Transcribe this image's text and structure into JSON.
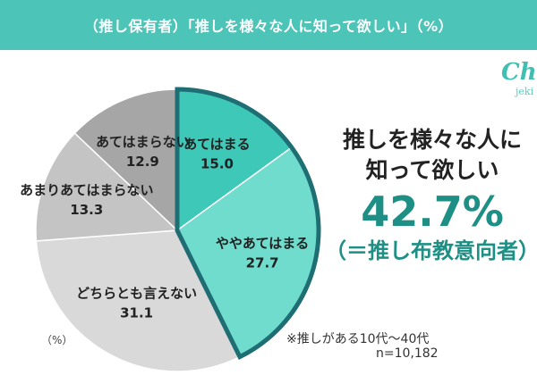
{
  "title": "（推し保有者）「推しを様々な人に知って欲しい」（%）",
  "logo": {
    "main": "Che",
    "sub": "jeki"
  },
  "callout": {
    "line1": "推しを様々な人に",
    "line2": "知って欲しい",
    "percent": "42.7%",
    "sub": "（＝推し布教意向者）"
  },
  "unit_label": "（%）",
  "note": {
    "line1": "※推しがある10代～40代",
    "line2": "n=10,182"
  },
  "colors": {
    "header": "#4cc4b8",
    "accent": "#1d8f84",
    "highlight_border": "#1e6e74"
  },
  "chart_data": {
    "type": "pie",
    "title": "（推し保有者）「推しを様々な人に知って欲しい」（%）",
    "categories": [
      "あてはまる",
      "ややあてはまる",
      "どちらとも言えない",
      "あまりあてはまらない",
      "あてはまらない"
    ],
    "values": [
      15.0,
      27.7,
      31.1,
      13.3,
      12.9
    ],
    "labels": [
      "15.0%",
      "27.7%",
      "31.1%",
      "13.3%",
      "12.9%"
    ],
    "colors": [
      "#3ec8b8",
      "#6fdccd",
      "#d9d9d9",
      "#c4c4c4",
      "#a6a6a6"
    ],
    "highlighted": [
      "あてはまる",
      "ややあてはまる"
    ],
    "start": "12 o'clock",
    "direction": "clockwise"
  }
}
